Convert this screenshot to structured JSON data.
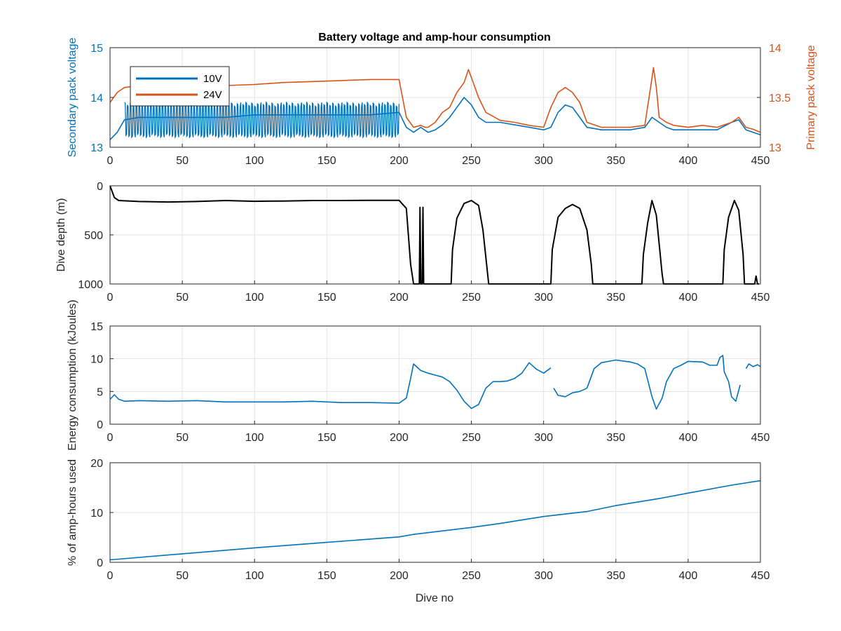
{
  "chart_data": [
    {
      "type": "line",
      "title": "Battery voltage and amp-hour consumption",
      "xlabel": "",
      "ylabel_left": "Secondary pack voltage",
      "ylabel_right": "Primary pack voltage",
      "xlim": [
        0,
        450
      ],
      "ylim_left": [
        13,
        15
      ],
      "ylim_right": [
        13,
        14
      ],
      "xticks": [
        "0",
        "50",
        "100",
        "150",
        "200",
        "250",
        "300",
        "350",
        "400",
        "450"
      ],
      "yticks_left": [
        "13",
        "14",
        "15"
      ],
      "yticks_right": [
        "13",
        "13.5",
        "14"
      ],
      "grid": true,
      "legend": "top-left",
      "colors": {
        "left_axis": "#0072BD",
        "right_axis": "#D95319"
      },
      "series": [
        {
          "name": "10V",
          "axis": "left",
          "color": "#0072BD",
          "x": [
            0,
            5,
            10,
            20,
            40,
            60,
            80,
            100,
            120,
            140,
            160,
            180,
            200,
            205,
            210,
            215,
            220,
            225,
            230,
            235,
            240,
            245,
            250,
            255,
            260,
            270,
            280,
            290,
            300,
            305,
            310,
            315,
            320,
            325,
            330,
            340,
            350,
            360,
            370,
            375,
            380,
            385,
            390,
            400,
            410,
            420,
            430,
            435,
            440,
            445,
            450
          ],
          "y": [
            13.15,
            13.3,
            13.55,
            13.6,
            13.6,
            13.6,
            13.6,
            13.65,
            13.65,
            13.65,
            13.65,
            13.65,
            13.7,
            13.4,
            13.3,
            13.4,
            13.3,
            13.35,
            13.45,
            13.6,
            13.8,
            14.0,
            13.85,
            13.6,
            13.5,
            13.5,
            13.45,
            13.4,
            13.35,
            13.4,
            13.7,
            13.85,
            13.8,
            13.6,
            13.4,
            13.35,
            13.35,
            13.35,
            13.4,
            13.6,
            13.5,
            13.4,
            13.35,
            13.35,
            13.35,
            13.35,
            13.5,
            13.55,
            13.35,
            13.3,
            13.25
          ]
        },
        {
          "name": "24V",
          "axis": "right",
          "color": "#D95319",
          "x": [
            0,
            5,
            10,
            20,
            40,
            60,
            80,
            100,
            120,
            140,
            160,
            180,
            200,
            205,
            210,
            215,
            218,
            220,
            225,
            230,
            235,
            240,
            245,
            248,
            250,
            255,
            260,
            270,
            280,
            290,
            300,
            305,
            310,
            315,
            320,
            325,
            330,
            340,
            350,
            360,
            370,
            374,
            376,
            378,
            380,
            385,
            390,
            400,
            410,
            420,
            430,
            435,
            440,
            445,
            450
          ],
          "y": [
            13.45,
            13.55,
            13.6,
            13.62,
            13.65,
            13.63,
            13.62,
            13.63,
            13.65,
            13.66,
            13.67,
            13.68,
            13.68,
            13.3,
            13.2,
            13.22,
            13.2,
            13.2,
            13.25,
            13.35,
            13.4,
            13.55,
            13.65,
            13.78,
            13.7,
            13.5,
            13.35,
            13.27,
            13.25,
            13.22,
            13.2,
            13.4,
            13.55,
            13.6,
            13.55,
            13.45,
            13.25,
            13.2,
            13.2,
            13.2,
            13.22,
            13.6,
            13.8,
            13.6,
            13.3,
            13.25,
            13.22,
            13.2,
            13.22,
            13.2,
            13.25,
            13.3,
            13.2,
            13.18,
            13.15
          ]
        }
      ],
      "fluctuating_band": {
        "series": "10V",
        "x": [
          10,
          200
        ],
        "low": 13.2,
        "high": 13.9
      }
    },
    {
      "type": "line",
      "title": "",
      "xlabel": "",
      "ylabel": "Dive depth (m)",
      "xlim": [
        0,
        450
      ],
      "ylim": [
        1000,
        0
      ],
      "y_reversed": true,
      "xticks": [
        "0",
        "50",
        "100",
        "150",
        "200",
        "250",
        "300",
        "350",
        "400",
        "450"
      ],
      "yticks": [
        "0",
        "500",
        "1000"
      ],
      "grid": true,
      "series": [
        {
          "name": "",
          "color": "#000000",
          "x": [
            0,
            3,
            6,
            20,
            40,
            60,
            80,
            100,
            120,
            140,
            160,
            180,
            200,
            205,
            208,
            210,
            212,
            214,
            214.5,
            215,
            216,
            216.5,
            217,
            218,
            236,
            237,
            240,
            245,
            250,
            255,
            258,
            262,
            263,
            280,
            300,
            305,
            306,
            310,
            315,
            320,
            325,
            330,
            333,
            334,
            350,
            368,
            369,
            372,
            375,
            378,
            382,
            383,
            400,
            424,
            425,
            428,
            432,
            435,
            438,
            439,
            446,
            447,
            448,
            449
          ],
          "y": [
            0,
            120,
            150,
            160,
            165,
            160,
            150,
            158,
            155,
            150,
            150,
            148,
            148,
            230,
            800,
            1000,
            1000,
            1000,
            220,
            1000,
            1000,
            220,
            1000,
            1000,
            1000,
            650,
            330,
            180,
            150,
            200,
            450,
            1000,
            1000,
            1000,
            1000,
            1000,
            650,
            320,
            230,
            190,
            230,
            450,
            800,
            1000,
            1000,
            1000,
            700,
            380,
            150,
            300,
            900,
            1000,
            1000,
            1000,
            650,
            320,
            150,
            250,
            700,
            1000,
            1000,
            920,
            1000,
            1000
          ]
        }
      ]
    },
    {
      "type": "line",
      "title": "",
      "xlabel": "",
      "ylabel": "Energy consumption (kJoules)",
      "xlim": [
        0,
        450
      ],
      "ylim": [
        0,
        15
      ],
      "xticks": [
        "0",
        "50",
        "100",
        "150",
        "200",
        "250",
        "300",
        "350",
        "400",
        "450"
      ],
      "yticks": [
        "0",
        "5",
        "10",
        "15"
      ],
      "grid": true,
      "series": [
        {
          "name": "",
          "color": "#0072BD",
          "x": [
            0,
            3,
            6,
            10,
            20,
            40,
            60,
            80,
            100,
            120,
            140,
            160,
            180,
            200,
            205,
            208,
            210,
            215,
            220,
            225,
            230,
            235,
            240,
            245,
            250,
            255,
            260,
            265,
            270,
            275,
            280,
            285,
            290,
            295,
            300,
            305
          ],
          "y": [
            3.8,
            4.5,
            3.8,
            3.5,
            3.6,
            3.5,
            3.6,
            3.4,
            3.4,
            3.4,
            3.5,
            3.3,
            3.3,
            3.2,
            4.0,
            7.0,
            9.2,
            8.2,
            7.8,
            7.5,
            7.2,
            6.5,
            5.2,
            3.5,
            2.4,
            3.0,
            5.5,
            6.5,
            6.5,
            6.6,
            7.0,
            7.8,
            9.4,
            8.4,
            7.8,
            8.6
          ]
        },
        {
          "name": "",
          "color": "#0072BD",
          "x": [
            307,
            310,
            315,
            320,
            325,
            330,
            335,
            340,
            345,
            350,
            360,
            365,
            370,
            375,
            378,
            382,
            385,
            390,
            395,
            400,
            410,
            415,
            420,
            422,
            424,
            425,
            428,
            430,
            433,
            436
          ],
          "y": [
            5.5,
            4.4,
            4.2,
            4.8,
            5.0,
            5.5,
            8.5,
            9.4,
            9.6,
            9.8,
            9.5,
            9.2,
            8.5,
            4.2,
            2.3,
            4.0,
            6.5,
            8.5,
            9.0,
            9.6,
            9.5,
            9.0,
            9.0,
            10.2,
            10.5,
            8.0,
            6.5,
            4.2,
            3.5,
            6.0
          ]
        },
        {
          "name": "",
          "color": "#0072BD",
          "x": [
            440,
            442,
            445,
            448,
            450
          ],
          "y": [
            8.5,
            9.2,
            8.8,
            9.1,
            8.8
          ]
        }
      ]
    },
    {
      "type": "line",
      "title": "",
      "xlabel": "Dive no",
      "ylabel": "% of amp-hours used",
      "xlim": [
        0,
        450
      ],
      "ylim": [
        0,
        20
      ],
      "xticks": [
        "0",
        "50",
        "100",
        "150",
        "200",
        "250",
        "300",
        "350",
        "400",
        "450"
      ],
      "yticks": [
        "0",
        "10",
        "20"
      ],
      "grid": true,
      "series": [
        {
          "name": "",
          "color": "#0072BD",
          "x": [
            0,
            50,
            100,
            150,
            200,
            210,
            250,
            270,
            300,
            330,
            350,
            380,
            400,
            430,
            450
          ],
          "y": [
            0.5,
            1.7,
            2.9,
            4.0,
            5.1,
            5.6,
            7.0,
            7.8,
            9.2,
            10.2,
            11.4,
            12.8,
            13.9,
            15.5,
            16.4
          ]
        }
      ]
    }
  ]
}
